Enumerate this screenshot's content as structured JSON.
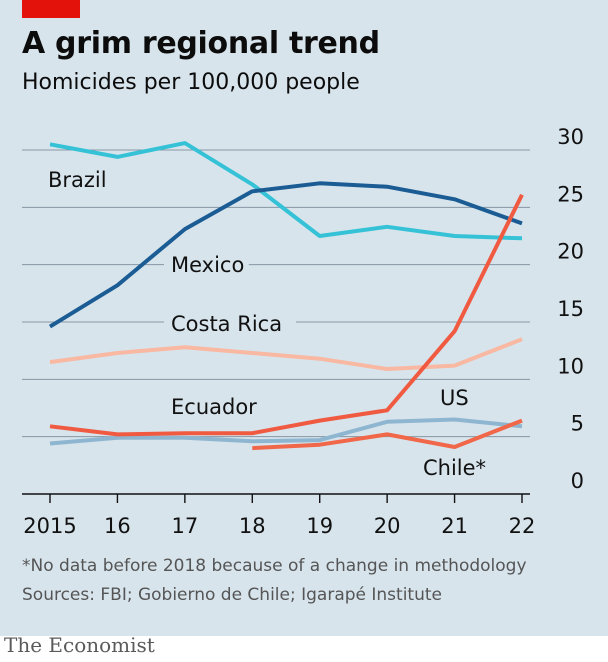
{
  "header": {
    "title": "A grim regional trend",
    "subtitle": "Homicides per 100,000 people"
  },
  "footer": {
    "note": "*No data before 2018 because of a change in methodology",
    "sources": "Sources: FBI; Gobierno de Chile; Igarapé Institute",
    "brand": "The Economist"
  },
  "colors": {
    "panel_background": "#d7e4ec",
    "brand_red": "#e3120b"
  },
  "chart_data": {
    "type": "line",
    "title": "A grim regional trend",
    "subtitle": "Homicides per 100,000 people",
    "x": [
      2015,
      2016,
      2017,
      2018,
      2019,
      2020,
      2021,
      2022
    ],
    "x_tick_labels": [
      "2015",
      "16",
      "17",
      "18",
      "19",
      "20",
      "21",
      "22"
    ],
    "y_ticks": [
      0,
      5,
      10,
      15,
      20,
      25,
      30
    ],
    "ylim": [
      0,
      30
    ],
    "y_axis_side": "right",
    "grid": true,
    "series": [
      {
        "name": "Brazil",
        "color": "#36c2d6",
        "values": [
          30.5,
          29.4,
          30.6,
          27.0,
          22.5,
          23.3,
          22.5,
          22.3
        ]
      },
      {
        "name": "Mexico",
        "color": "#1a5c93",
        "values": [
          14.6,
          18.2,
          23.1,
          26.4,
          27.1,
          26.8,
          25.7,
          23.6
        ]
      },
      {
        "name": "Costa Rica",
        "color": "#f8b8a2",
        "values": [
          11.5,
          12.3,
          12.8,
          12.3,
          11.8,
          10.9,
          11.2,
          13.5
        ]
      },
      {
        "name": "Ecuador",
        "color": "#ef5a41",
        "values": [
          5.9,
          5.2,
          5.3,
          5.3,
          6.4,
          7.3,
          14.2,
          26.1
        ]
      },
      {
        "name": "US",
        "color": "#8fb6d0",
        "values": [
          4.4,
          4.9,
          4.9,
          4.6,
          4.7,
          6.3,
          6.5,
          5.9
        ]
      },
      {
        "name": "Chile*",
        "color": "#f06749",
        "values": [
          null,
          null,
          null,
          4.0,
          4.3,
          5.2,
          4.1,
          6.4
        ]
      }
    ]
  }
}
